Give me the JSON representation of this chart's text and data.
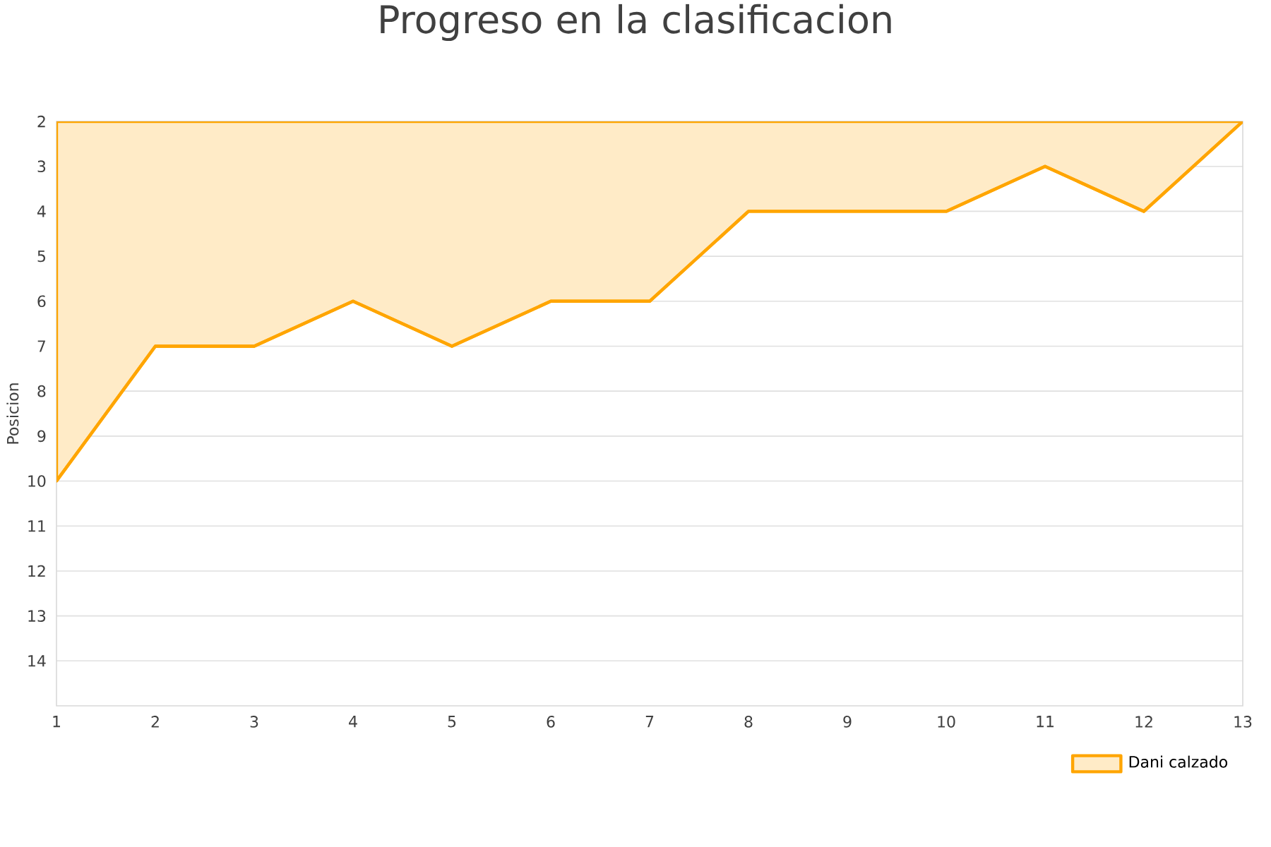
{
  "chart_data": {
    "type": "area",
    "title": "Progreso en la clasificacion",
    "ylabel": "Posicion",
    "x": [
      1,
      2,
      3,
      4,
      5,
      6,
      7,
      8,
      9,
      10,
      11,
      12,
      13
    ],
    "series": [
      {
        "name": "Dani calzado",
        "color": "#ffa500",
        "values": [
          10,
          7,
          7,
          6,
          7,
          6,
          6,
          4,
          4,
          4,
          3,
          4,
          2
        ]
      }
    ],
    "xlim": [
      1,
      13
    ],
    "xticks": [
      1,
      2,
      3,
      4,
      5,
      6,
      7,
      8,
      9,
      10,
      11,
      12,
      13
    ],
    "ylim": [
      15,
      2
    ],
    "yticks": [
      2,
      3,
      4,
      5,
      6,
      7,
      8,
      9,
      10,
      11,
      12,
      13,
      14
    ],
    "grid": "y",
    "legend": "bottom right"
  }
}
